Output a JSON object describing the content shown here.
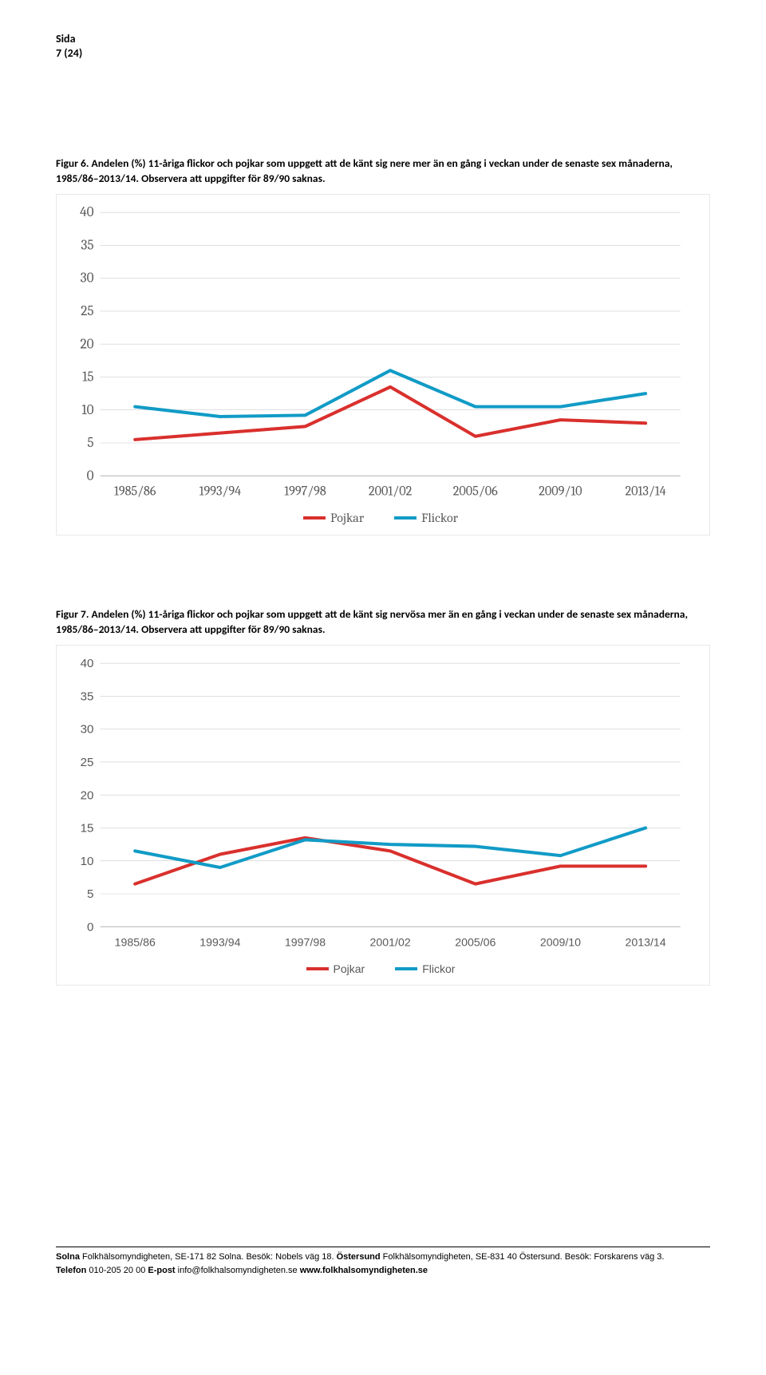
{
  "header": {
    "label": "Sida",
    "pages": "7 (24)"
  },
  "figure6": {
    "caption": "Figur 6. Andelen (%) 11-åriga flickor och pojkar som uppgett att de känt sig nere mer än en gång i veckan under de senaste sex månaderna, 1985/86–2013/14. Observera att uppgifter för 89/90 saknas.",
    "font_family": "serif",
    "ylim": [
      0,
      40
    ],
    "ytick_step": 5,
    "categories": [
      "1985/86",
      "1993/94",
      "1997/98",
      "2001/02",
      "2005/06",
      "2009/10",
      "2013/14"
    ],
    "series": [
      {
        "name": "Pojkar",
        "color": "#d9302d",
        "values": [
          5.5,
          6.5,
          7.5,
          13.5,
          6,
          8.5,
          8
        ]
      },
      {
        "name": "Flickor",
        "color": "#119bc6",
        "values": [
          10.5,
          9,
          9.2,
          16,
          10.5,
          10.5,
          12.5
        ]
      }
    ],
    "gridline_color": "#cccccc",
    "baseline_color": "#b3b3b3"
  },
  "figure7": {
    "caption": "Figur 7. Andelen (%) 11-åriga flickor och pojkar som uppgett att de känt sig nervösa mer än en gång i veckan under de senaste sex månaderna, 1985/86–2013/14. Observera att uppgifter för 89/90 saknas.",
    "font_family": "sans",
    "ylim": [
      0,
      40
    ],
    "ytick_step": 5,
    "categories": [
      "1985/86",
      "1993/94",
      "1997/98",
      "2001/02",
      "2005/06",
      "2009/10",
      "2013/14"
    ],
    "series": [
      {
        "name": "Pojkar",
        "color": "#d9302d",
        "values": [
          6.5,
          11,
          13.5,
          11.5,
          6.5,
          9.2,
          9.2
        ]
      },
      {
        "name": "Flickor",
        "color": "#119bc6",
        "values": [
          11.5,
          9,
          13.2,
          12.5,
          12.2,
          10.8,
          15
        ]
      }
    ],
    "gridline_color": "#cccccc",
    "baseline_color": "#b3b3b3"
  },
  "footer": {
    "line1_b1": "Solna",
    "line1_t1": " Folkhälsomyndigheten, SE-171 82 Solna. Besök: Nobels väg 18. ",
    "line1_b2": "Östersund",
    "line1_t2": " Folkhälsomyndigheten, SE-831 40 Östersund. Besök: Forskarens väg 3.",
    "line2_b1": "Telefon",
    "line2_t1": " 010-205 20 00 ",
    "line2_b2": "E-post",
    "line2_t2": " info@folkhalsomyndigheten.se ",
    "line2_b3": "www.folkhalsomyndigheten.se"
  }
}
